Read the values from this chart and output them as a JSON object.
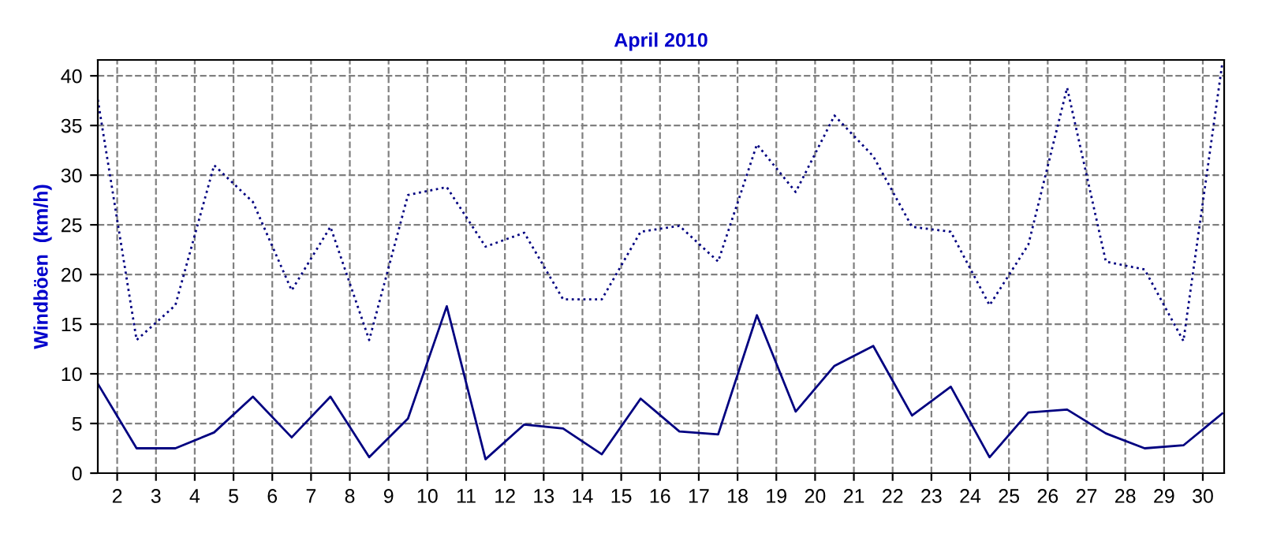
{
  "chart_data": {
    "type": "line",
    "title": "April 2010",
    "ylabel": "Windböen  (km/h)",
    "x": [
      1.5,
      2.5,
      3.5,
      4.5,
      5.5,
      6.5,
      7.5,
      8.5,
      9.5,
      10.5,
      11.5,
      12.5,
      13.5,
      14.5,
      15.5,
      16.5,
      17.5,
      18.5,
      19.5,
      20.5,
      21.5,
      22.5,
      23.5,
      24.5,
      25.5,
      26.5,
      27.5,
      28.5,
      29.5,
      30.5
    ],
    "series": [
      {
        "color": "#000080",
        "line_style": "dotted",
        "values": [
          37.6,
          13.4,
          16.9,
          31.0,
          27.3,
          18.4,
          24.8,
          13.4,
          28.0,
          28.8,
          22.8,
          24.2,
          17.5,
          17.5,
          24.3,
          24.9,
          21.3,
          33.1,
          28.3,
          36.0,
          31.9,
          24.8,
          24.3,
          16.9,
          23.0,
          38.8,
          21.3,
          20.5,
          13.3,
          41.2
        ]
      },
      {
        "color": "#000080",
        "line_style": "solid",
        "values": [
          9.0,
          2.5,
          2.5,
          4.1,
          7.7,
          3.6,
          7.7,
          1.6,
          5.5,
          16.8,
          1.4,
          4.9,
          4.5,
          1.9,
          7.5,
          4.2,
          3.9,
          15.9,
          6.2,
          10.8,
          12.8,
          5.8,
          8.7,
          1.6,
          6.1,
          6.4,
          4.0,
          2.5,
          2.8,
          6.0
        ]
      }
    ],
    "xlim": [
      1.5,
      30.55
    ],
    "xticks": [
      2,
      3,
      4,
      5,
      6,
      7,
      8,
      9,
      10,
      11,
      12,
      13,
      14,
      15,
      16,
      17,
      18,
      19,
      20,
      21,
      22,
      23,
      24,
      25,
      26,
      27,
      28,
      29,
      30
    ],
    "ylim": [
      0,
      41.6
    ],
    "yticks": [
      0,
      5,
      10,
      15,
      20,
      25,
      30,
      35,
      40
    ],
    "grid": true
  }
}
